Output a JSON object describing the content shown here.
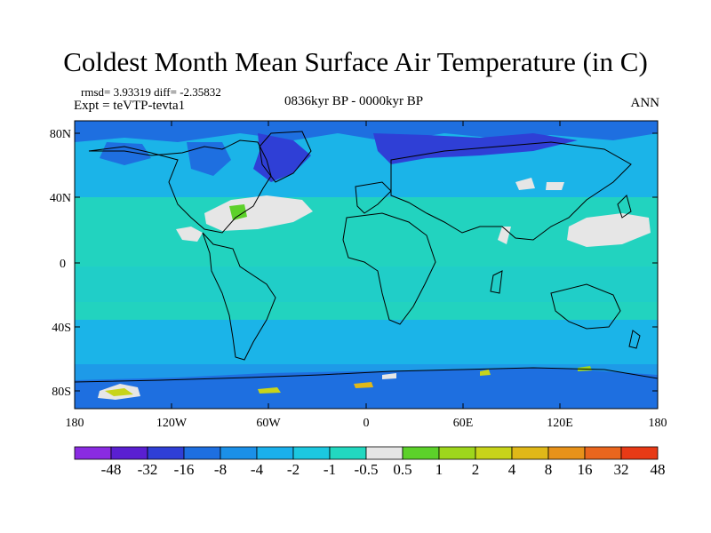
{
  "figure": {
    "title": "Coldest Month Mean Surface Air Temperature (in C)",
    "stats_text": "rmsd= 3.93319 diff= -2.35832",
    "experiment_text": "Expt = teVTP-tevta1",
    "period_text": "0836kyr BP - 0000kyr BP",
    "season_text": "ANN"
  },
  "map": {
    "lat_ticks": [
      "80N",
      "40N",
      "0",
      "40S",
      "80S"
    ],
    "lon_ticks": [
      "180",
      "120W",
      "60W",
      "0",
      "60E",
      "120E",
      "180"
    ]
  },
  "colorbar": {
    "labels": [
      "-48",
      "-32",
      "-16",
      "-8",
      "-4",
      "-2",
      "-1",
      "-0.5",
      "0.5",
      "1",
      "2",
      "4",
      "8",
      "16",
      "32",
      "48"
    ],
    "colors": [
      "#8a2be2",
      "#5a1fd1",
      "#2f3fd6",
      "#1e6fe0",
      "#1b90e8",
      "#1ab0ec",
      "#1cc8e0",
      "#22d8c0",
      "#e6e6e6",
      "#5cd12a",
      "#9ed61c",
      "#c8d41a",
      "#e0b818",
      "#e8921a",
      "#ea661e",
      "#e83a16"
    ]
  }
}
